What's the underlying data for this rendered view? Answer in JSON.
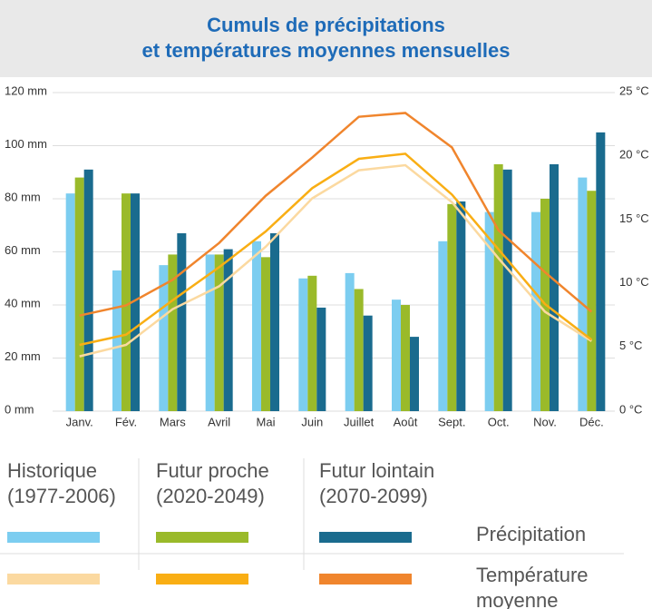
{
  "chart_data": {
    "type": "bar",
    "title": "Cumuls de précipitations\net températures moyennes mensuelles",
    "categories": [
      "Janv.",
      "Fév.",
      "Mars",
      "Avril",
      "Mai",
      "Juin",
      "Juillet",
      "Août",
      "Sept.",
      "Oct.",
      "Nov.",
      "Déc."
    ],
    "ylim": [
      0,
      120
    ],
    "yticks": [
      {
        "value": 0,
        "label": "0 mm"
      },
      {
        "value": 20,
        "label": "20 mm"
      },
      {
        "value": 40,
        "label": "40 mm"
      },
      {
        "value": 60,
        "label": "60 mm"
      },
      {
        "value": 80,
        "label": "80 mm"
      },
      {
        "value": 100,
        "label": "100 mm"
      },
      {
        "value": 120,
        "label": "120 mm"
      }
    ],
    "y2lim": [
      0,
      25
    ],
    "y2ticks": [
      {
        "value": 0,
        "label": "0 °C"
      },
      {
        "value": 5,
        "label": "5 °C"
      },
      {
        "value": 10,
        "label": "10 °C"
      },
      {
        "value": 15,
        "label": "15 °C"
      },
      {
        "value": 20,
        "label": "20 °C"
      },
      {
        "value": 25,
        "label": "25 °C"
      }
    ],
    "grid": true,
    "bar_label": "Précipitation",
    "line_label": "Température\nmoyenne",
    "series": [
      {
        "name": "Historique\n(1977-2006)",
        "color": "#7ccdf0",
        "values": [
          82,
          53,
          55,
          59,
          64,
          50,
          52,
          42,
          64,
          75,
          75,
          88
        ],
        "line_color": "#fbd9a0",
        "y2_values": [
          4.3,
          5.2,
          8.0,
          9.8,
          12.9,
          16.7,
          18.9,
          19.3,
          16.4,
          12.0,
          7.8,
          5.5
        ]
      },
      {
        "name": "Futur proche\n(2020-2049)",
        "color": "#9aba2a",
        "values": [
          88,
          82,
          59,
          59,
          58,
          51,
          46,
          40,
          78,
          93,
          80,
          83
        ],
        "line_color": "#f9ae14",
        "y2_values": [
          5.2,
          6.0,
          8.7,
          11.3,
          14.1,
          17.5,
          19.8,
          20.2,
          17.0,
          12.7,
          8.4,
          5.6
        ]
      },
      {
        "name": "Futur lointain\n(2070-2099)",
        "color": "#1a6b8e",
        "values": [
          91,
          82,
          67,
          61,
          67,
          39,
          36,
          28,
          79,
          91,
          93,
          105
        ],
        "line_color": "#f0852d",
        "y2_values": [
          7.5,
          8.3,
          10.3,
          13.2,
          16.9,
          19.9,
          23.1,
          23.4,
          20.7,
          14.2,
          10.9,
          7.8
        ]
      }
    ]
  }
}
